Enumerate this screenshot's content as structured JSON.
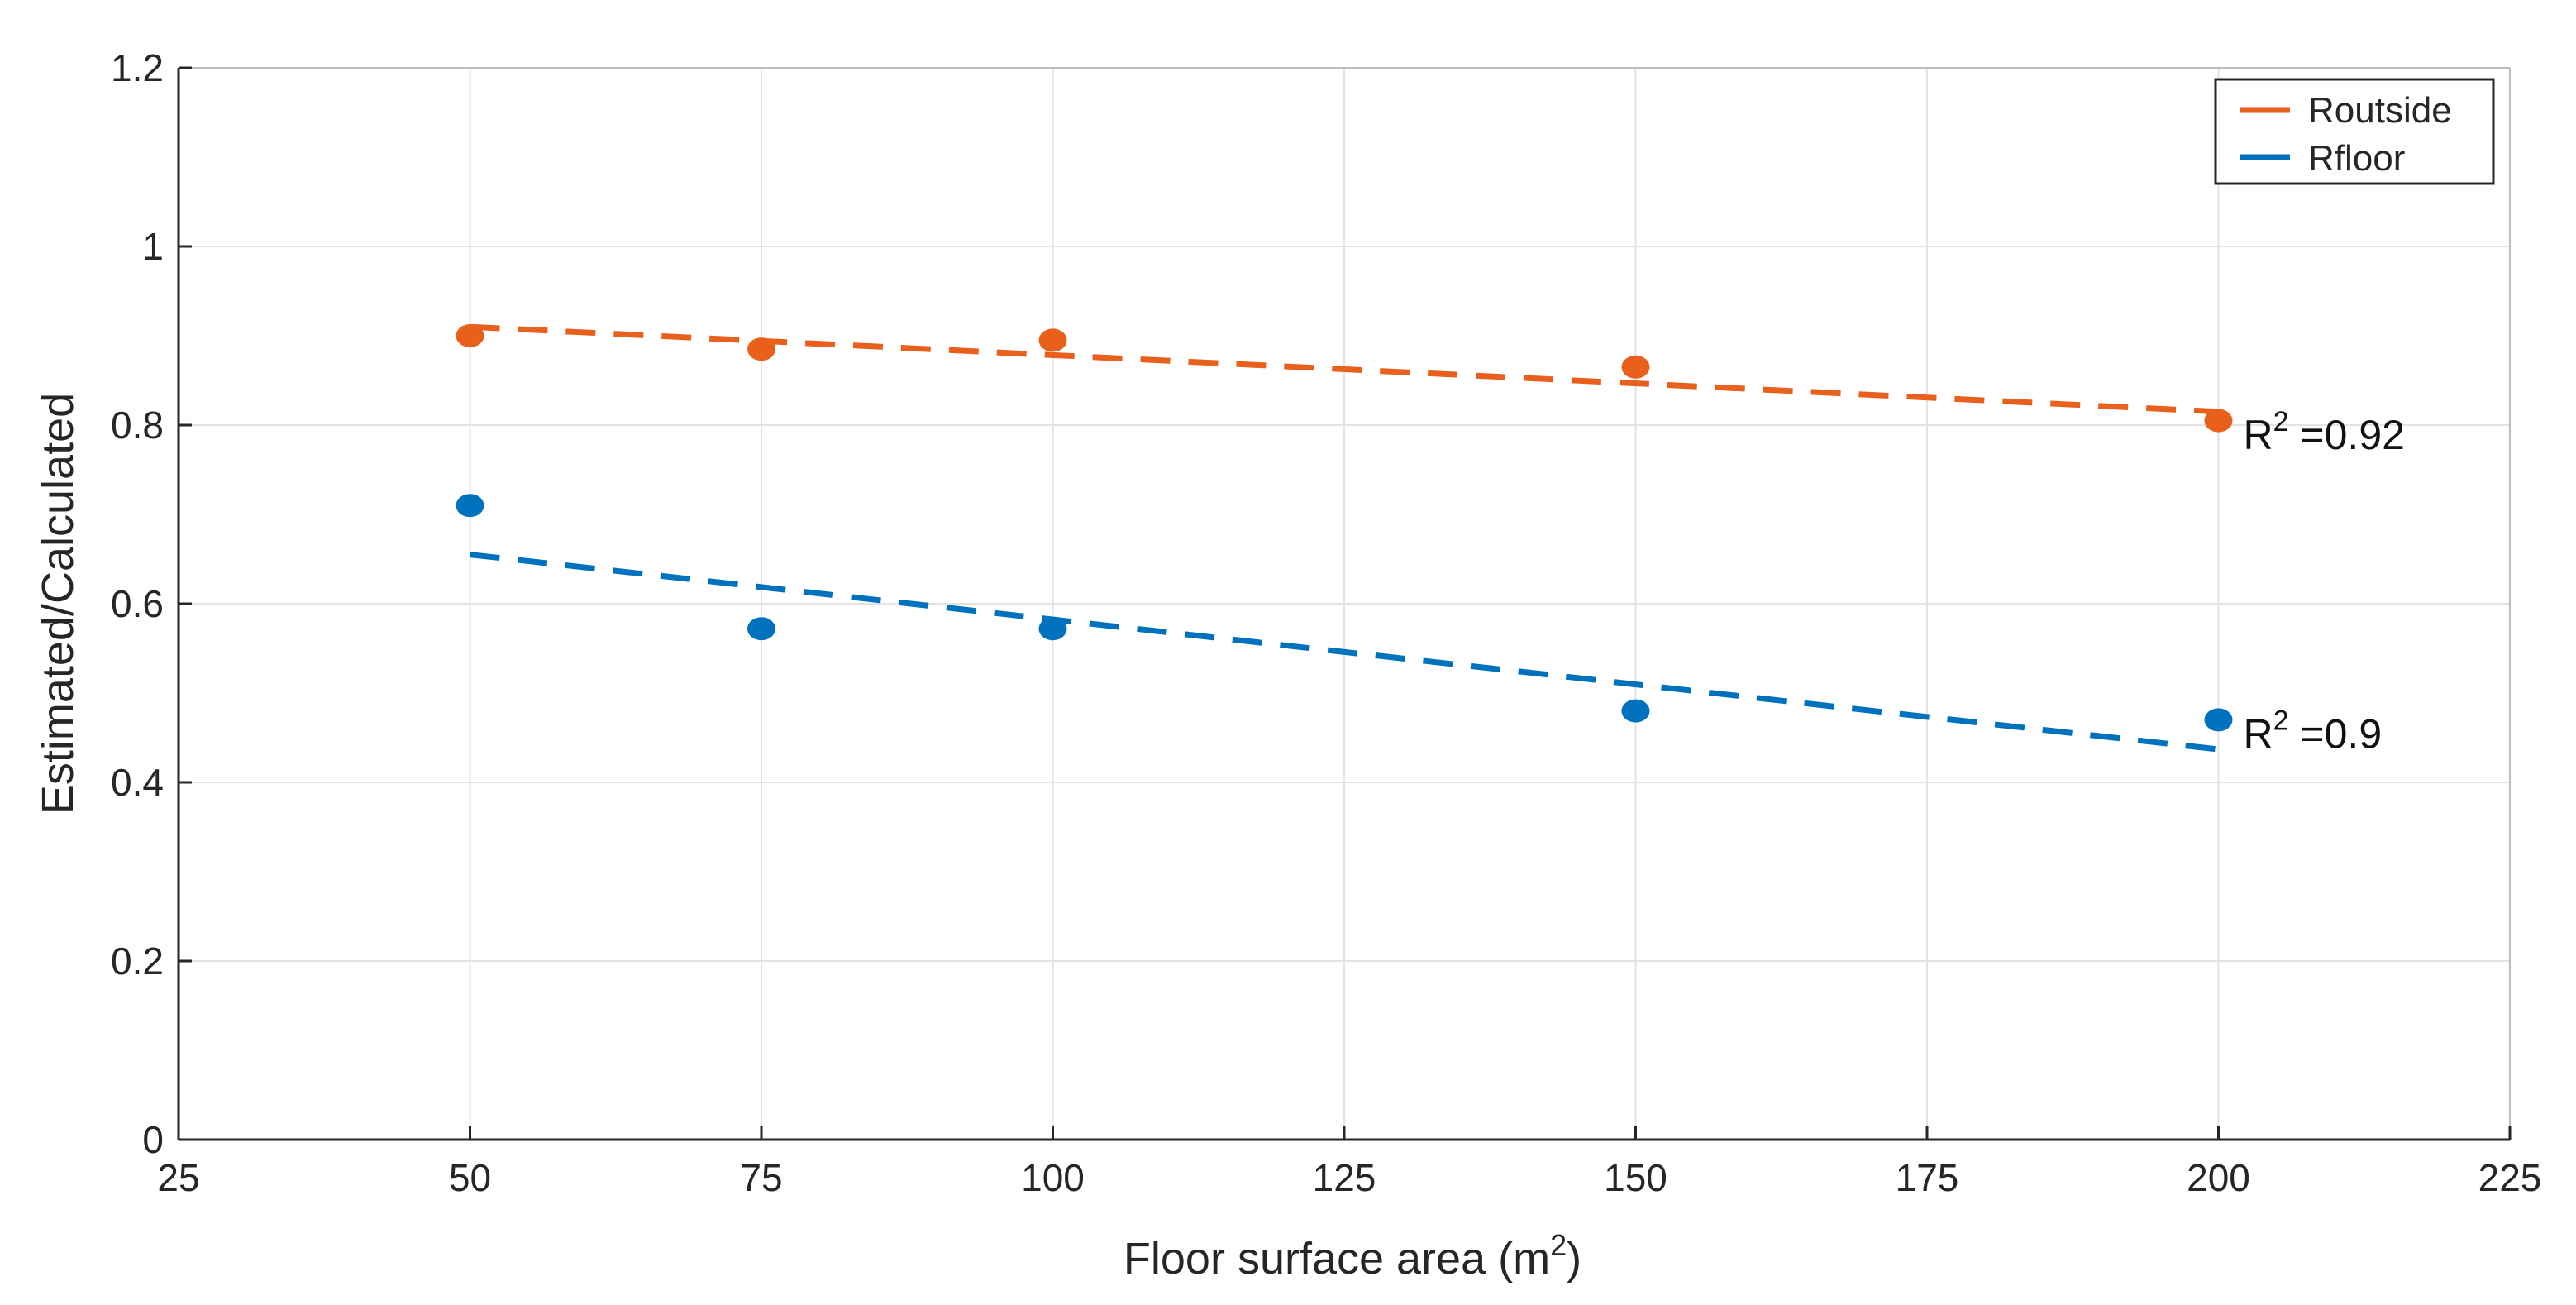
{
  "chart_data": {
    "type": "scatter",
    "title": "",
    "xlabel": "Floor surface area (m",
    "xlabel_superscript": "2",
    "xlabel_suffix": ")",
    "ylabel": "Estimated/Calculated",
    "xlim": [
      25,
      225
    ],
    "ylim": [
      0,
      1.2
    ],
    "xticks": [
      25,
      50,
      75,
      100,
      125,
      150,
      175,
      200,
      225
    ],
    "yticks": [
      0,
      0.2,
      0.4,
      0.6,
      0.8,
      1,
      1.2
    ],
    "xtick_labels": [
      "25",
      "50",
      "75",
      "100",
      "125",
      "150",
      "175",
      "200",
      "225"
    ],
    "ytick_labels": [
      "0",
      "0.2",
      "0.4",
      "0.6",
      "0.8",
      "1",
      "1.2"
    ],
    "grid": true,
    "legend_position": "top-right",
    "series": [
      {
        "name": "Routside",
        "color": "#e8601c",
        "points": [
          [
            50,
            0.9
          ],
          [
            75,
            0.885
          ],
          [
            100,
            0.895
          ],
          [
            150,
            0.865
          ],
          [
            200,
            0.805
          ]
        ],
        "trend": [
          [
            50,
            0.91
          ],
          [
            200,
            0.815
          ]
        ],
        "annotation": {
          "prefix": "R",
          "superscript": "2",
          "text": " =0.92",
          "at": [
            200,
            0.79
          ]
        }
      },
      {
        "name": "Rfloor",
        "color": "#0072bd",
        "points": [
          [
            50,
            0.71
          ],
          [
            75,
            0.572
          ],
          [
            100,
            0.572
          ],
          [
            150,
            0.48
          ],
          [
            200,
            0.47
          ]
        ],
        "trend": [
          [
            50,
            0.655
          ],
          [
            200,
            0.437
          ]
        ],
        "annotation": {
          "prefix": "R",
          "superscript": "2",
          "text": " =0.9",
          "at": [
            200,
            0.455
          ]
        }
      }
    ]
  }
}
